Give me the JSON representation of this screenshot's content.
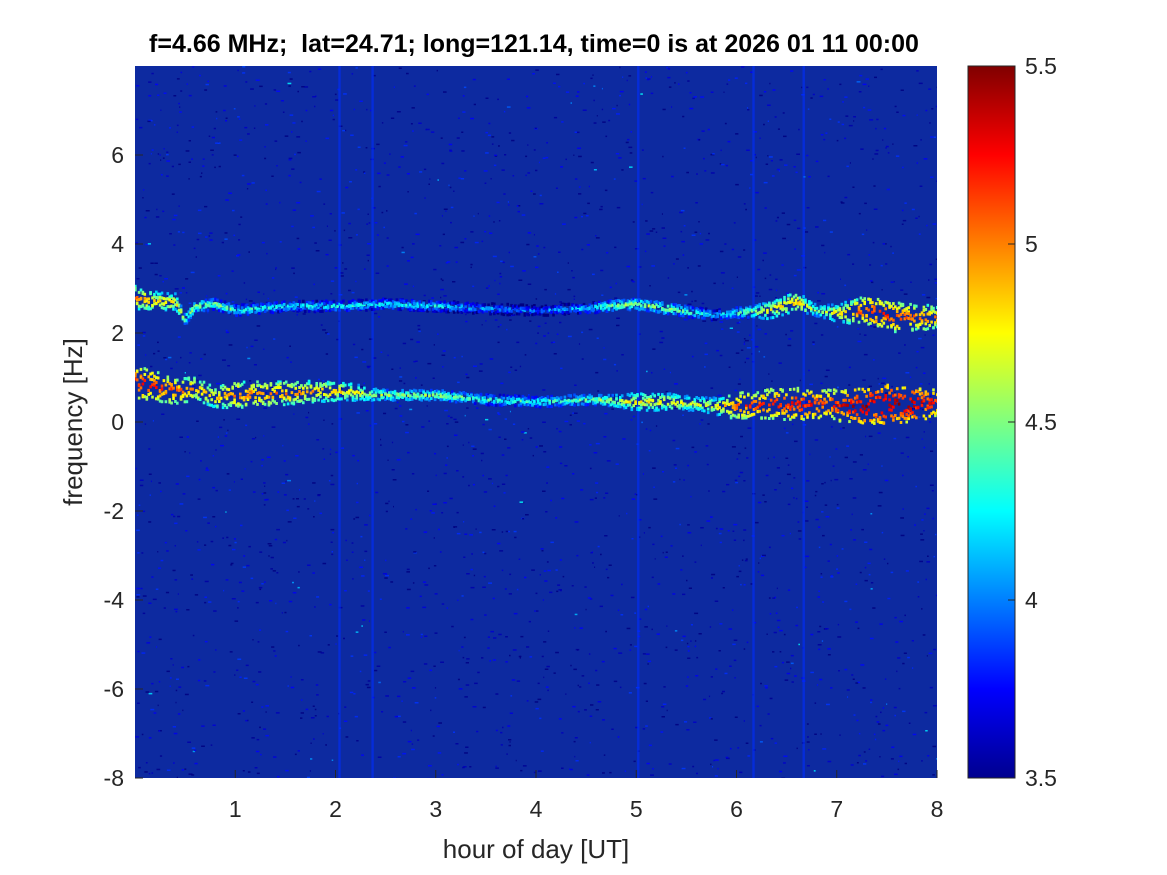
{
  "chart_data": {
    "type": "heatmap",
    "title": "f=4.66 MHz;  lat=24.71; long=121.14, time=0 is at 2026 01 11 00:00",
    "xlabel": "hour of day [UT]",
    "ylabel": "frequency [Hz]",
    "xlim": [
      0,
      8
    ],
    "ylim": [
      -8,
      8
    ],
    "xticks": [
      1,
      2,
      3,
      4,
      5,
      6,
      7,
      8
    ],
    "xtick_labels": [
      "1",
      "2",
      "3",
      "4",
      "5",
      "6",
      "7",
      "8"
    ],
    "yticks": [
      -8,
      -6,
      -4,
      -2,
      0,
      2,
      4,
      6
    ],
    "ytick_labels": [
      "-8",
      "-6",
      "-4",
      "-2",
      "0",
      "2",
      "4",
      "6"
    ],
    "colormap": "jet",
    "colorbar": {
      "range": [
        3.5,
        5.5
      ],
      "ticks": [
        3.5,
        4,
        4.5,
        5,
        5.5
      ],
      "tick_labels": [
        "3.5",
        "4",
        "4.5",
        "5",
        "5.5"
      ]
    },
    "background_level": 3.6,
    "series": [
      {
        "x": [
          0.0,
          0.2,
          0.4,
          0.5,
          0.6,
          0.8,
          1.0,
          1.5,
          2.0,
          2.5,
          3.0,
          3.5,
          4.0,
          4.5,
          4.7,
          5.0,
          5.3,
          5.6,
          5.8,
          6.0,
          6.3,
          6.6,
          6.8,
          7.0,
          7.3,
          7.6,
          8.0
        ],
        "y": [
          2.8,
          2.7,
          2.7,
          2.3,
          2.6,
          2.65,
          2.5,
          2.6,
          2.6,
          2.65,
          2.6,
          2.55,
          2.5,
          2.55,
          2.6,
          2.65,
          2.55,
          2.45,
          2.4,
          2.45,
          2.5,
          2.7,
          2.5,
          2.45,
          2.5,
          2.35,
          2.35
        ],
        "level": [
          5.0,
          4.9,
          4.8,
          4.6,
          4.6,
          4.5,
          4.4,
          4.3,
          4.3,
          4.3,
          4.3,
          4.1,
          4.0,
          4.2,
          4.5,
          4.6,
          4.6,
          4.4,
          4.2,
          4.4,
          4.8,
          4.9,
          4.6,
          4.8,
          5.2,
          5.2,
          5.0
        ]
      },
      {
        "x": [
          0.0,
          0.2,
          0.4,
          0.6,
          0.8,
          1.0,
          1.5,
          2.0,
          2.5,
          3.0,
          3.5,
          4.0,
          4.5,
          5.0,
          5.3,
          5.6,
          5.8,
          6.0,
          6.3,
          6.6,
          6.9,
          7.2,
          7.5,
          7.8,
          8.0
        ],
        "y": [
          0.9,
          0.8,
          0.7,
          0.75,
          0.55,
          0.6,
          0.65,
          0.7,
          0.6,
          0.6,
          0.5,
          0.45,
          0.5,
          0.45,
          0.45,
          0.4,
          0.35,
          0.35,
          0.4,
          0.4,
          0.4,
          0.35,
          0.4,
          0.4,
          0.45
        ],
        "level": [
          5.3,
          5.2,
          5.1,
          5.0,
          4.9,
          5.1,
          5.0,
          4.9,
          4.6,
          4.6,
          4.4,
          4.4,
          4.5,
          4.8,
          4.8,
          4.7,
          4.8,
          5.1,
          5.2,
          5.3,
          5.2,
          5.4,
          5.5,
          5.4,
          5.2
        ]
      }
    ],
    "vertical_streaks": [
      2.04,
      2.37,
      5.02,
      6.17,
      6.67
    ]
  }
}
